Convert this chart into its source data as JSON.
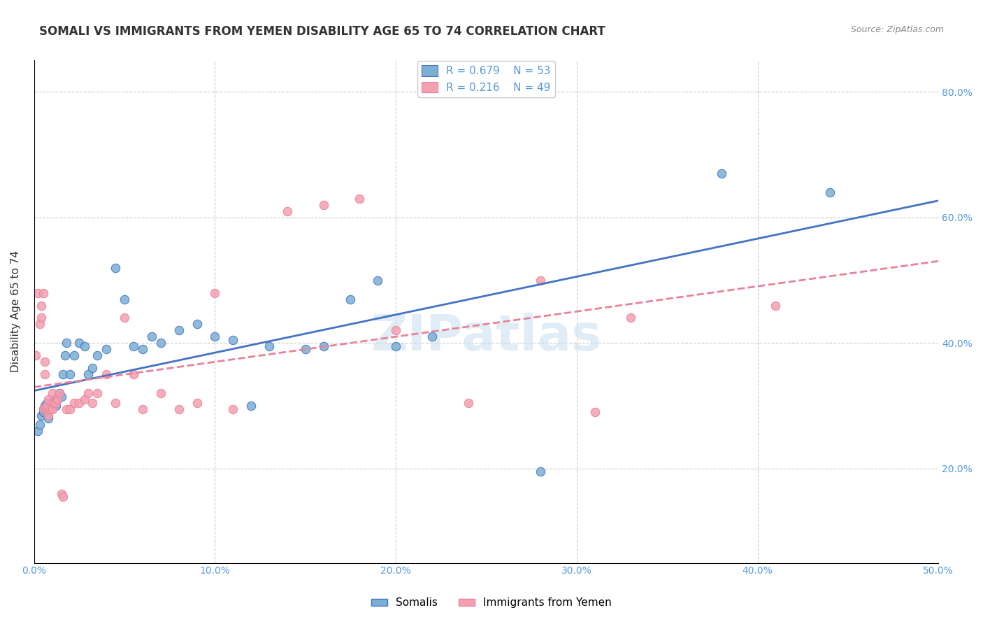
{
  "title": "SOMALI VS IMMIGRANTS FROM YEMEN DISABILITY AGE 65 TO 74 CORRELATION CHART",
  "source": "Source: ZipAtlas.com",
  "ylabel": "Disability Age 65 to 74",
  "xlabel_bottom_left": "0.0%",
  "xlabel_bottom_right": "50.0%",
  "ylabel_right_labels": [
    "20.0%",
    "40.0%",
    "60.0%",
    "80.0%"
  ],
  "xmin": 0.0,
  "xmax": 0.5,
  "ymin": 0.05,
  "ymax": 0.85,
  "watermark": "ZIPatlas",
  "legend_r1": "R = 0.679",
  "legend_n1": "N = 53",
  "legend_r2": "R = 0.216",
  "legend_n2": "N = 49",
  "color_somali": "#7bafd4",
  "color_yemen": "#f4a0b0",
  "color_somali_line": "#4472c4",
  "color_yemen_line": "#e8829a",
  "marker_size": 80,
  "somali_x": [
    0.002,
    0.003,
    0.004,
    0.005,
    0.005,
    0.006,
    0.006,
    0.007,
    0.007,
    0.008,
    0.008,
    0.009,
    0.009,
    0.01,
    0.01,
    0.011,
    0.011,
    0.012,
    0.013,
    0.014,
    0.015,
    0.016,
    0.017,
    0.018,
    0.02,
    0.022,
    0.025,
    0.028,
    0.03,
    0.032,
    0.035,
    0.04,
    0.045,
    0.05,
    0.055,
    0.06,
    0.065,
    0.07,
    0.08,
    0.09,
    0.1,
    0.11,
    0.12,
    0.13,
    0.15,
    0.16,
    0.175,
    0.19,
    0.2,
    0.22,
    0.28,
    0.38,
    0.44
  ],
  "somali_y": [
    0.26,
    0.27,
    0.285,
    0.29,
    0.295,
    0.295,
    0.3,
    0.295,
    0.305,
    0.28,
    0.295,
    0.295,
    0.3,
    0.3,
    0.305,
    0.305,
    0.31,
    0.3,
    0.31,
    0.32,
    0.315,
    0.35,
    0.38,
    0.4,
    0.35,
    0.38,
    0.4,
    0.395,
    0.35,
    0.36,
    0.38,
    0.39,
    0.52,
    0.47,
    0.395,
    0.39,
    0.41,
    0.4,
    0.42,
    0.43,
    0.41,
    0.405,
    0.3,
    0.395,
    0.39,
    0.395,
    0.47,
    0.5,
    0.395,
    0.41,
    0.195,
    0.67,
    0.64
  ],
  "yemen_x": [
    0.001,
    0.002,
    0.003,
    0.004,
    0.004,
    0.005,
    0.005,
    0.006,
    0.006,
    0.007,
    0.007,
    0.008,
    0.008,
    0.009,
    0.01,
    0.01,
    0.011,
    0.012,
    0.013,
    0.014,
    0.015,
    0.016,
    0.018,
    0.02,
    0.022,
    0.025,
    0.028,
    0.03,
    0.032,
    0.035,
    0.04,
    0.045,
    0.05,
    0.055,
    0.06,
    0.07,
    0.08,
    0.09,
    0.1,
    0.11,
    0.14,
    0.16,
    0.18,
    0.2,
    0.24,
    0.28,
    0.31,
    0.33,
    0.41
  ],
  "yemen_y": [
    0.38,
    0.48,
    0.43,
    0.44,
    0.46,
    0.48,
    0.295,
    0.35,
    0.37,
    0.295,
    0.3,
    0.31,
    0.285,
    0.295,
    0.32,
    0.295,
    0.305,
    0.305,
    0.31,
    0.32,
    0.16,
    0.155,
    0.295,
    0.295,
    0.305,
    0.305,
    0.31,
    0.32,
    0.305,
    0.32,
    0.35,
    0.305,
    0.44,
    0.35,
    0.295,
    0.32,
    0.295,
    0.305,
    0.48,
    0.295,
    0.61,
    0.62,
    0.63,
    0.42,
    0.305,
    0.5,
    0.29,
    0.44,
    0.46
  ]
}
